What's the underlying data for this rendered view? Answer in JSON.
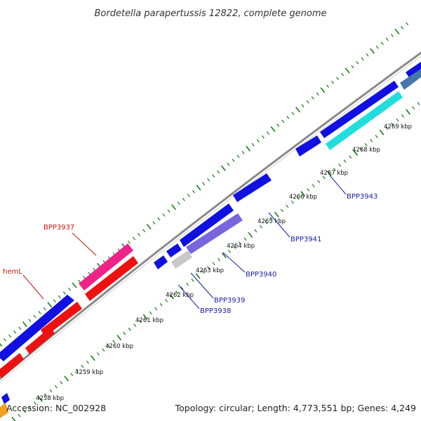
{
  "title": "Bordetella parapertussis 12822, complete genome",
  "footer": {
    "accession": "Accession: NC_002928",
    "summary": "Topology: circular; Length: 4,773,551 bp; Genes: 4,249"
  },
  "colors": {
    "backbone": "#8a8a8a",
    "tick": "#1a7a1a",
    "blue_gene": "#1010e0",
    "red_gene": "#ee1111",
    "pink_gene": "#ee2288",
    "purple_gene": "#7766dd",
    "cyan_gene": "#22dddd",
    "grey_gene": "#c8c8c8",
    "steel_gene": "#4477aa",
    "label_blue": "#1a1aa6",
    "label_red": "#cc1111"
  },
  "scale_ticks": [
    "4258 kbp",
    "4259 kbp",
    "4260 kbp",
    "4261 kbp",
    "4262 kbp",
    "4263 kbp",
    "4264 kbp",
    "4265 kbp",
    "4266 kbp",
    "4267 kbp",
    "4268 kbp",
    "4269 kbp"
  ],
  "gene_labels": [
    {
      "text": "BPP3937",
      "color": "label_red"
    },
    {
      "text": "hemL",
      "color": "label_red"
    },
    {
      "text": "BPP3938",
      "color": "label_blue"
    },
    {
      "text": "BPP3939",
      "color": "label_blue"
    },
    {
      "text": "BPP3940",
      "color": "label_blue"
    },
    {
      "text": "BPP3941",
      "color": "label_blue"
    },
    {
      "text": "BPP3943",
      "color": "label_blue"
    }
  ]
}
